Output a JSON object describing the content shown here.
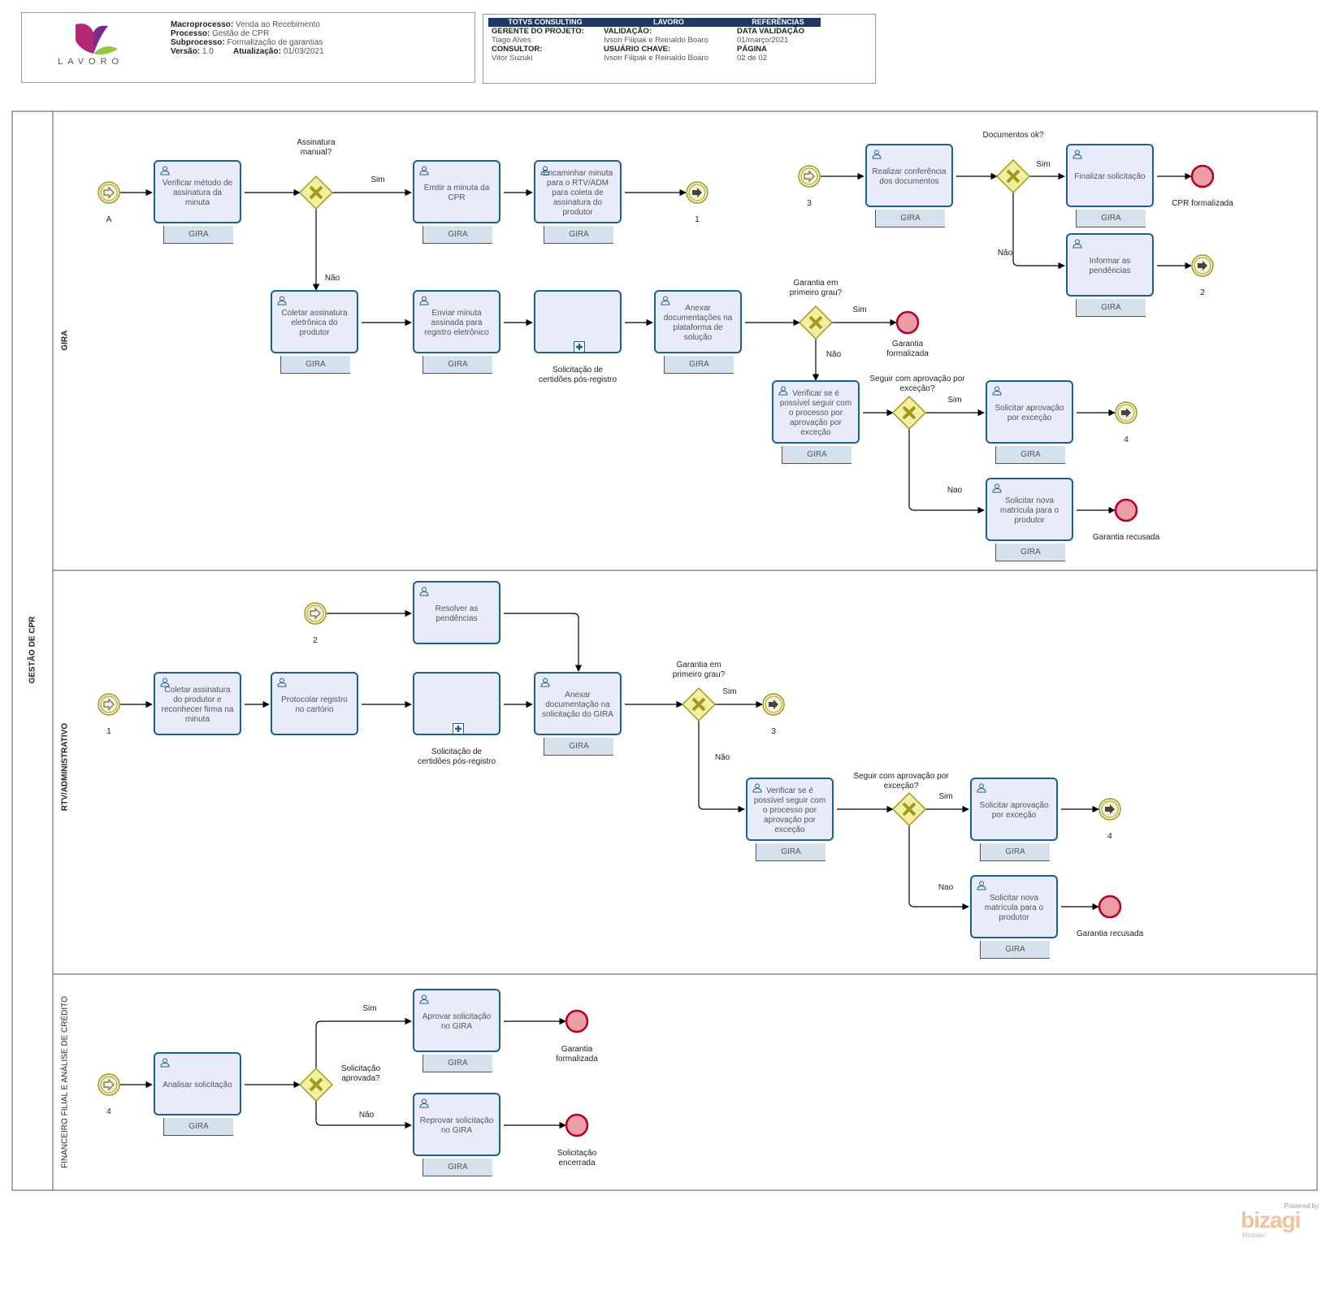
{
  "header": {
    "logo_text": "LAVORO",
    "macroprocesso_label": "Macroprocesso:",
    "macroprocesso": "Venda ao Recebimento",
    "processo_label": "Processo:",
    "processo": "Gestão de CPR",
    "subprocesso_label": "Subprocesso:",
    "subprocesso": "Formalização de garantias",
    "versao_label": "Versão:",
    "versao": "1.0",
    "atualizacao_label": "Atualização:",
    "atualizacao": "01/03/2021"
  },
  "references": {
    "head_totvs": "TOTVS CONSULTING",
    "head_lavoro": "LAVORO",
    "head_ref": "REFERÊNCIAS",
    "gerente_label": "GERENTE DO PROJETO:",
    "gerente": "Tiago Alves",
    "validacao_label": "VALIDAÇÃO:",
    "validacao": "Ivson Filipak e Reinaldo Boaro",
    "data_label": "DATA VALIDAÇÃO",
    "data": "01/março/2021",
    "consultor_label": "CONSULTOR:",
    "consultor": "Vitor Suzuki",
    "usuario_label": "USUÁRIO CHAVE:",
    "usuario": "Ivson Filipak e Reinaldo Boaro",
    "pagina_label": "PÁGINA",
    "pagina": "02 de 02"
  },
  "pool": "GESTÃO DE CPR",
  "lanes": {
    "gira": "GIRA",
    "rtv": "RTV/ADMINISTRATIVO",
    "fin": "FINANCEIRO FILIAL E ANÁLISE DE CRÉDITO"
  },
  "performer": "GIRA",
  "tasks": {
    "g1": "Verificar método de assinatura da minuta",
    "g2": "Emitir a minuta da CPR",
    "g3": "Encaminhar minuta para o RTV/ADM para coleta de assinatura do produtor",
    "g4": "Coletar assinatura eletrônica do produtor",
    "g5": "Enviar minuta assinada para registro eletrônico",
    "g7": "Anexar documentações na plataforma de solução",
    "g8": "Verificar se é possível seguir com o processo por aprovação por exceção",
    "g9": "Solicitar aprovação por exceção",
    "g10": "Solicitar nova matrícula para o produtor",
    "g11": "Realizar conferência dos documentos",
    "g12": "Finalizar solicitação",
    "g13": "Informar as pendências",
    "r1": "Resolver as pendências",
    "r2": "Coletar assinatura do produtor e reconhecer firma na minuta",
    "r3": "Protocolar registro no cartório",
    "r5": "Anexar documentação na solicitação do GIRA",
    "r6": "Verificar se é possível seguir com o processo por aprovação por exceção",
    "r7": "Solicitar aprovação por exceção",
    "r8": "Solicitar nova matrícula para o produtor",
    "f1": "Analisar solicitação",
    "f2": "Aprovar solicitação no GIRA",
    "f3": "Reprovar solicitação no GIRA"
  },
  "subprocess": "Solicitação de certidões pós-registro",
  "gateways": {
    "assinatura": "Assinatura manual?",
    "documentos": "Documentos ok?",
    "garantia": "Garantia em primeiro grau?",
    "seguir": "Seguir com aprovação por exceção?",
    "solicitacao": "Solicitação aprovada?"
  },
  "events": {
    "start_a": "A",
    "link_1": "1",
    "link_2": "2",
    "link_3": "3",
    "link_4": "4",
    "end_cpr": "CPR formalizada",
    "end_garantia": "Garantia formalizada",
    "end_recusada": "Garantia recusada",
    "end_encerrada": "Solicitação encerrada"
  },
  "flows": {
    "sim": "Sim",
    "nao": "Não",
    "nao_alt": "Nao"
  },
  "watermark": {
    "powered": "Powered by",
    "brand": "bizagi",
    "product": "Modeler"
  },
  "colors": {
    "task_fill": "#e8ebfa",
    "task_stroke": "#1f5f8f",
    "gateway_fill": "#f4efa0",
    "gateway_stroke": "#9e9a1e",
    "start_fill": "#f5f1d2",
    "end_fill": "#ea9ea4",
    "end_stroke": "#b3002a",
    "ref_head": "#1f3864",
    "performer_fill": "#d6e1ee"
  }
}
